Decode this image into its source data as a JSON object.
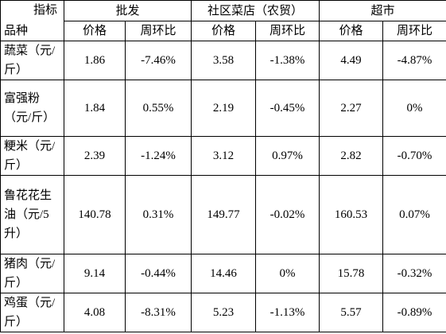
{
  "header": {
    "corner_top": "指标",
    "corner_bottom": "品种",
    "groups": [
      "批发",
      "社区菜店（农贸）",
      "超市"
    ],
    "subheaders": [
      "价格",
      "周环比",
      "价格",
      "周环比",
      "价格",
      "周环比"
    ]
  },
  "rows": [
    [
      "蔬菜（元/斤）",
      "1.86",
      "-7.46%",
      "3.58",
      "-1.38%",
      "4.49",
      "-4.87%"
    ],
    [
      "富强粉（元/斤）",
      "1.84",
      "0.55%",
      "2.19",
      "-0.45%",
      "2.27",
      "0%"
    ],
    [
      "粳米（元/斤）",
      "2.39",
      "-1.24%",
      "3.12",
      "0.97%",
      "2.82",
      "-0.70%"
    ],
    [
      "鲁花花生油（元/5升）",
      "140.78",
      "0.31%",
      "149.77",
      "-0.02%",
      "160.53",
      "0.07%"
    ],
    [
      "猪肉（元/斤）",
      "9.14",
      "-0.44%",
      "14.46",
      "0%",
      "15.78",
      "-0.32%"
    ],
    [
      "鸡蛋（元/斤）",
      "4.08",
      "-8.31%",
      "5.23",
      "-1.13%",
      "5.57",
      "-0.89%"
    ]
  ]
}
